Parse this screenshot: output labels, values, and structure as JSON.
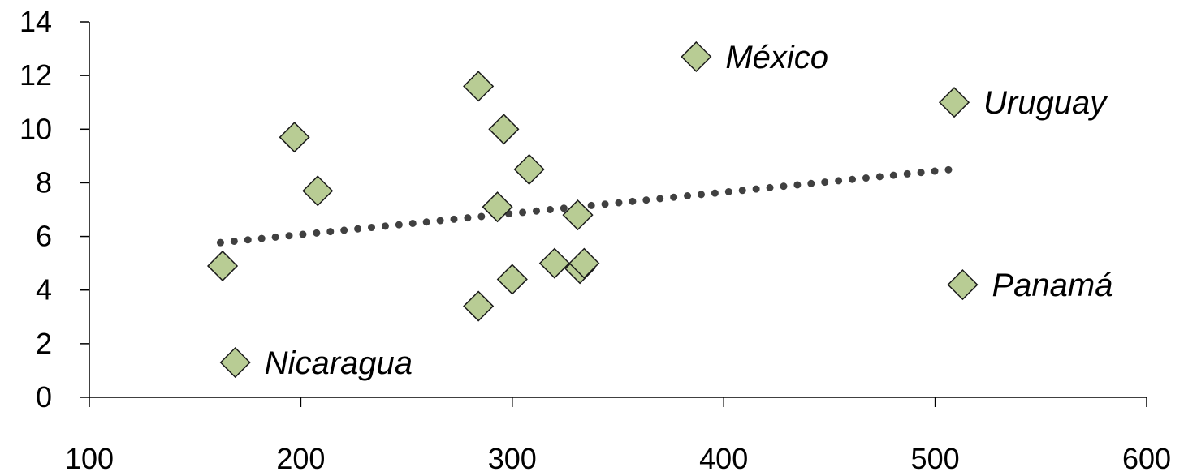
{
  "chart_data": {
    "type": "scatter",
    "title": "",
    "xlabel": "",
    "ylabel": "",
    "xlim": [
      100,
      600
    ],
    "ylim": [
      0,
      14
    ],
    "x_ticks": [
      100,
      200,
      300,
      400,
      500,
      600
    ],
    "y_ticks": [
      0,
      2,
      4,
      6,
      8,
      10,
      12,
      14
    ],
    "x_tick_labels": [
      "100",
      "200",
      "300",
      "400",
      "500",
      "600"
    ],
    "y_tick_labels": [
      "0",
      "2",
      "4",
      "6",
      "8",
      "10",
      "12",
      "14"
    ],
    "grid": false,
    "legend": "none",
    "colors": {
      "marker_fill": "#b8cc94",
      "marker_stroke": "#1a1a1a",
      "trendline": "#404040"
    },
    "points": [
      {
        "x": 163,
        "y": 4.9,
        "label": ""
      },
      {
        "x": 169,
        "y": 1.3,
        "label": "Nicaragua"
      },
      {
        "x": 197,
        "y": 9.7,
        "label": ""
      },
      {
        "x": 208,
        "y": 7.7,
        "label": ""
      },
      {
        "x": 284,
        "y": 11.6,
        "label": ""
      },
      {
        "x": 284,
        "y": 3.4,
        "label": ""
      },
      {
        "x": 293,
        "y": 7.1,
        "label": ""
      },
      {
        "x": 296,
        "y": 10.0,
        "label": ""
      },
      {
        "x": 300,
        "y": 4.4,
        "label": ""
      },
      {
        "x": 308,
        "y": 8.5,
        "label": ""
      },
      {
        "x": 320,
        "y": 5.0,
        "label": ""
      },
      {
        "x": 331,
        "y": 6.8,
        "label": ""
      },
      {
        "x": 332,
        "y": 4.8,
        "label": ""
      },
      {
        "x": 334,
        "y": 5.0,
        "label": ""
      },
      {
        "x": 387,
        "y": 12.7,
        "label": "México"
      },
      {
        "x": 509,
        "y": 11.0,
        "label": "Uruguay"
      },
      {
        "x": 513,
        "y": 4.2,
        "label": "Panamá"
      }
    ],
    "trendline": {
      "type": "linear",
      "style": "dotted",
      "x": [
        162,
        508
      ],
      "y": [
        5.77,
        8.5
      ]
    }
  }
}
